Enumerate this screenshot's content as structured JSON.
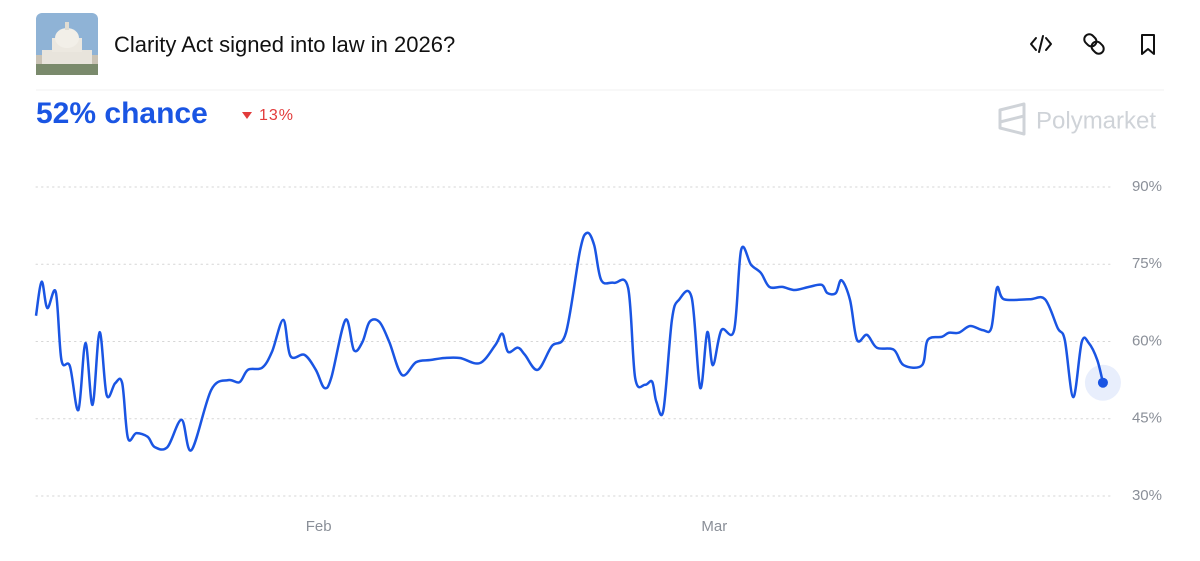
{
  "header": {
    "title": "Clarity Act signed into law in 2026?"
  },
  "summary": {
    "chance": "52% chance",
    "change": "13%"
  },
  "brand": "Polymarket",
  "chart_data": {
    "type": "line",
    "color": "#1a55e3",
    "x": [
      0,
      0.4,
      0.8,
      1.4,
      1.8,
      2.4,
      3.0,
      3.5,
      4.0,
      4.5,
      5.0,
      5.6,
      6.1,
      6.5,
      7.1,
      7.9,
      8.4,
      9.3,
      10.3,
      11.0,
      12.4,
      13.6,
      14.4,
      15.0,
      16.0,
      16.7,
      17.5,
      18.0,
      19.0,
      19.8,
      20.4,
      20.9,
      21.9,
      22.5,
      23.1,
      23.6,
      24.3,
      25.0,
      25.9,
      26.9,
      27.9,
      28.9,
      30.0,
      31.4,
      32.5,
      33.0,
      33.4,
      34.1,
      34.6,
      35.5,
      36.5,
      37.5,
      38.5,
      39.0,
      39.5,
      40.0,
      40.9,
      41.9,
      42.4,
      43.1,
      43.6,
      43.9,
      44.4,
      45.0,
      45.5,
      46.4,
      47.0,
      47.5,
      47.9,
      48.5,
      49.4,
      49.9,
      50.6,
      51.3,
      51.9,
      52.8,
      53.7,
      54.7,
      55.6,
      56.0,
      56.6,
      57.0,
      57.6,
      58.1,
      58.8,
      59.5,
      60.7,
      61.4,
      62.7,
      63.1,
      64.1,
      64.6,
      65.3,
      66.1,
      67.0,
      67.6,
      68.0,
      68.5,
      70.3,
      71.4,
      72.3,
      72.8,
      73.4,
      74.0,
      74.5,
      75.1,
      75.5
    ],
    "values": [
      65,
      71.6,
      66.5,
      69.6,
      56.4,
      55.2,
      46.7,
      59.7,
      47.7,
      61.8,
      49.6,
      51.9,
      51.9,
      41.3,
      42.2,
      41.5,
      39.5,
      39.5,
      44.8,
      38.9,
      50.6,
      52.5,
      52.1,
      54.5,
      54.9,
      58,
      64.2,
      57.2,
      57.4,
      54.5,
      51,
      53,
      64.2,
      58.3,
      59.9,
      63.8,
      63.8,
      59.9,
      53.5,
      56,
      56.4,
      56.8,
      56.8,
      55.8,
      59.3,
      61.5,
      58,
      58.8,
      57.4,
      54.5,
      59.1,
      61.7,
      77.7,
      81.1,
      78.7,
      71.9,
      71.4,
      70.4,
      52.9,
      51.6,
      52.2,
      48.3,
      46.7,
      64.2,
      68.1,
      68.5,
      51,
      61.8,
      55.4,
      62.2,
      62.2,
      77.8,
      74.9,
      73.3,
      70.6,
      70.6,
      70,
      70.6,
      71,
      69.4,
      69.4,
      71.9,
      68.1,
      60.3,
      61.3,
      58.8,
      58.4,
      55.4,
      55.4,
      60.3,
      60.9,
      61.7,
      61.7,
      63,
      62.2,
      62.6,
      70.4,
      68.2,
      68.2,
      68.2,
      62.6,
      60.3,
      49.2,
      59.9,
      59.7,
      56.4,
      52
    ],
    "xlim": [
      0,
      76
    ],
    "xticks": [
      {
        "value": 20,
        "label": "Feb"
      },
      {
        "value": 48,
        "label": "Mar"
      }
    ],
    "ylim": [
      30,
      90
    ],
    "yticks": [
      {
        "value": 30,
        "label": "30%"
      },
      {
        "value": 45,
        "label": "45%"
      },
      {
        "value": 60,
        "label": "60%"
      },
      {
        "value": 75,
        "label": "75%"
      },
      {
        "value": 90,
        "label": "90%"
      }
    ],
    "grid": true
  }
}
